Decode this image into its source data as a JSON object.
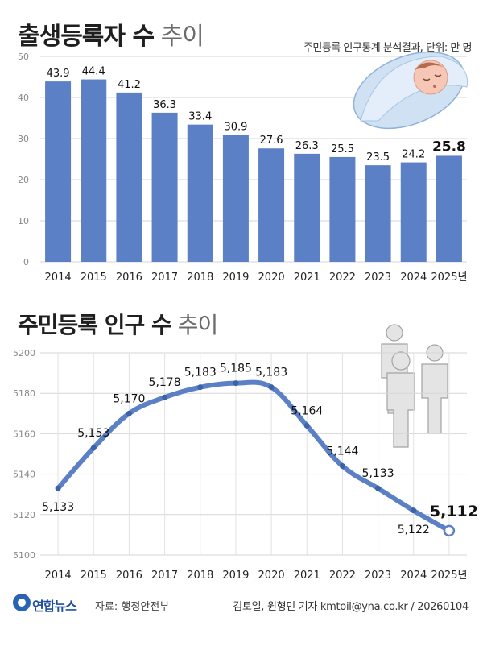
{
  "header": {
    "title_main": "출생등록자 수",
    "title_sub": "추이",
    "subtitle": "주민등록 인구통계 분석결과, 단위: 만 명"
  },
  "section2": {
    "title_main": "주민등록 인구 수",
    "title_sub": "추이"
  },
  "footer": {
    "logo": "연합뉴스",
    "source": "자료: 행정안전부",
    "credit": "김토일, 원형민 기자 kmtoil@yna.co.kr / 20260104"
  },
  "icons": {
    "top": "sleeping-baby-icon",
    "bottom": "people-group-icon"
  },
  "colors": {
    "bar": "#5b80c5",
    "line": "#5b80c5",
    "highlight_text": "#111111"
  },
  "chart_data": [
    {
      "type": "bar",
      "categories": [
        "2014",
        "2015",
        "2016",
        "2017",
        "2018",
        "2019",
        "2020",
        "2021",
        "2022",
        "2023",
        "2024",
        "2025년"
      ],
      "values": [
        43.9,
        44.4,
        41.2,
        36.3,
        33.4,
        30.9,
        27.6,
        26.3,
        25.5,
        23.5,
        24.2,
        25.8
      ],
      "labels": [
        "43.9",
        "44.4",
        "41.2",
        "36.3",
        "33.4",
        "30.9",
        "27.6",
        "26.3",
        "25.5",
        "23.5",
        "24.2",
        "25.8"
      ],
      "ylim": [
        0,
        50
      ],
      "yticks": [
        "0",
        "10",
        "20",
        "30",
        "40",
        "50"
      ],
      "grid": true
    },
    {
      "type": "line",
      "categories": [
        "2014",
        "2015",
        "2016",
        "2017",
        "2018",
        "2019",
        "2020",
        "2021",
        "2022",
        "2023",
        "2024",
        "2025년"
      ],
      "values": [
        5133,
        5153,
        5170,
        5178,
        5183,
        5185,
        5183,
        5164,
        5144,
        5133,
        5122,
        5112
      ],
      "labels": [
        "5,133",
        "5,153",
        "5,170",
        "5,178",
        "5,183",
        "5,185",
        "5,183",
        "5,164",
        "5,144",
        "5,133",
        "5,122",
        "5,112"
      ],
      "ylim": [
        5100,
        5200
      ],
      "yticks": [
        "5100",
        "5120",
        "5140",
        "5160",
        "5180",
        "5200"
      ],
      "grid": true
    }
  ]
}
